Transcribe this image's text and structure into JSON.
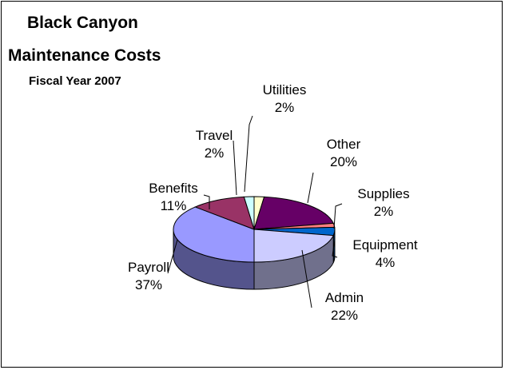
{
  "chart_data": {
    "type": "pie",
    "title": "Black Canyon",
    "title_line2": "Maintenance Costs",
    "subtitle": "Fiscal Year 2007",
    "slices": [
      {
        "label": "Utilities",
        "value": 2,
        "display": "2%",
        "color": "#ffffcc"
      },
      {
        "label": "Other",
        "value": 20,
        "display": "20%",
        "color": "#660066"
      },
      {
        "label": "Supplies",
        "value": 2,
        "display": "2%",
        "color": "#ff8080"
      },
      {
        "label": "Equipment",
        "value": 4,
        "display": "4%",
        "color": "#0066cc"
      },
      {
        "label": "Admin",
        "value": 22,
        "display": "22%",
        "color": "#ccccff"
      },
      {
        "label": "Payroll",
        "value": 37,
        "display": "37%",
        "color": "#9999ff"
      },
      {
        "label": "Benefits",
        "value": 11,
        "display": "11%",
        "color": "#993366"
      },
      {
        "label": "Travel",
        "value": 2,
        "display": "2%",
        "color": "#ccffff"
      }
    ],
    "legend": "none",
    "style": "3d-pie"
  }
}
